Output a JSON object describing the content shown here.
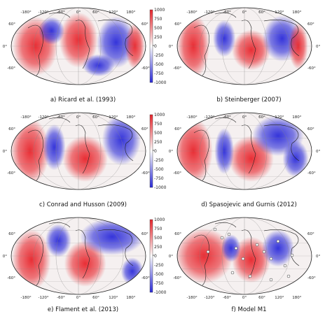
{
  "panels": [
    {
      "id": "a",
      "caption": "a) Ricard et al. (1993)",
      "colorbar": true
    },
    {
      "id": "b",
      "caption": "b) Steinberger (2007)",
      "colorbar": false
    },
    {
      "id": "c",
      "caption": "c) Conrad and Husson (2009)",
      "colorbar": true
    },
    {
      "id": "d",
      "caption": "d) Spasojevic and Gurnis (2012)",
      "colorbar": false
    },
    {
      "id": "e",
      "caption": "e) Flament et al. (2013)",
      "colorbar": true
    },
    {
      "id": "f",
      "caption": "f) Model M1",
      "colorbar": false
    }
  ],
  "colorbar_ticks": [
    "1000",
    "750",
    "500",
    "250",
    "0",
    "-250",
    "-500",
    "-750",
    "-1000"
  ],
  "lon_labels": [
    "-180°",
    "-120°",
    "-60°",
    "0°",
    "60°",
    "120°",
    "180°"
  ],
  "lat_labels": [
    "60°",
    "0°",
    "-60°"
  ],
  "colors": {
    "positive": "#e8242b",
    "negative": "#2b2bd9",
    "neutral": "#f5f0f0"
  }
}
